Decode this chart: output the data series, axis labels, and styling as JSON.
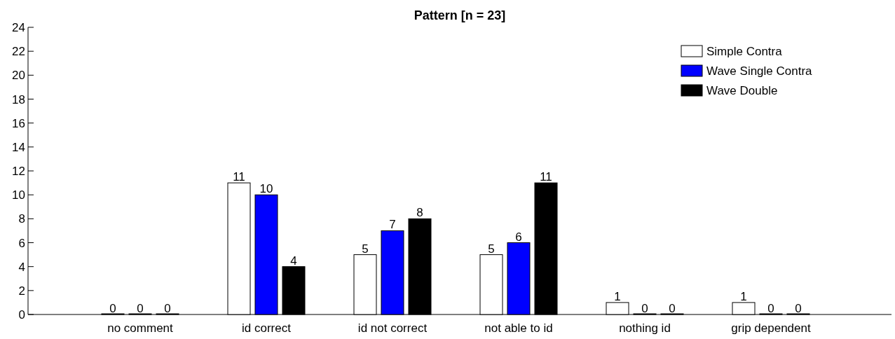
{
  "chart_data": {
    "type": "bar",
    "title": "Pattern [n = 23]",
    "categories": [
      "no comment",
      "id correct",
      "id not correct",
      "not able to id",
      "nothing id",
      "grip dependent"
    ],
    "series": [
      {
        "name": "Simple Contra",
        "color": "#ffffff",
        "values": [
          0,
          11,
          5,
          5,
          1,
          1
        ]
      },
      {
        "name": "Wave Single Contra",
        "color": "#0000ff",
        "values": [
          0,
          10,
          7,
          6,
          0,
          0
        ]
      },
      {
        "name": "Wave Double",
        "color": "#000000",
        "values": [
          0,
          4,
          8,
          11,
          0,
          0
        ]
      }
    ],
    "ylim": [
      0,
      24
    ],
    "yticks": [
      0,
      2,
      4,
      6,
      8,
      10,
      12,
      14,
      16,
      18,
      20,
      22,
      24
    ],
    "grid": false,
    "legend": "top right",
    "data_labels": true
  }
}
